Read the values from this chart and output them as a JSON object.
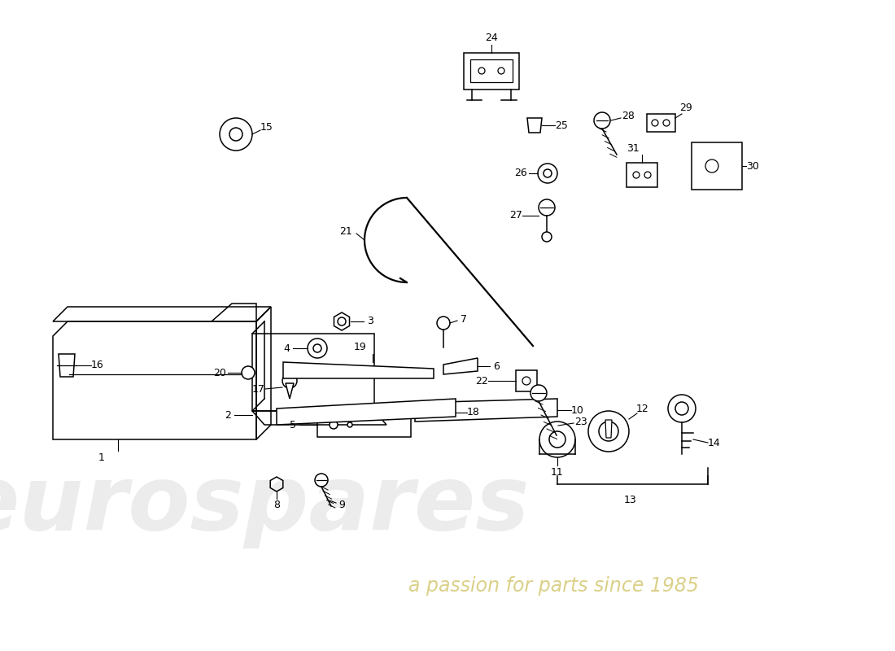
{
  "bg": "#ffffff",
  "wm1": "eurospares",
  "wm2": "a passion for parts since 1985",
  "lw": 1.1
}
